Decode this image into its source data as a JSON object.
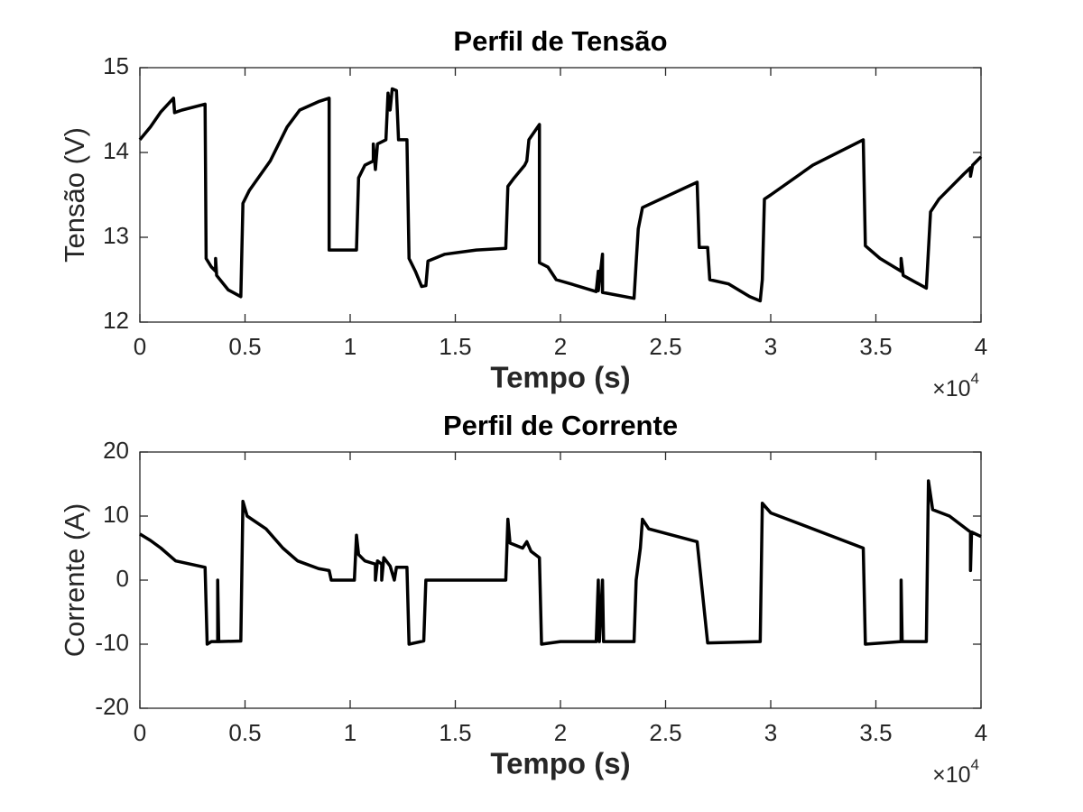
{
  "chart_data": [
    {
      "type": "line",
      "title": "Perfil de Tensão",
      "xlabel": "Tempo (s)",
      "ylabel": "Tensão (V)",
      "x_multiplier": "×10",
      "x_exponent": "4",
      "color": "#000000",
      "xlim": [
        0,
        4
      ],
      "xticks": [
        0,
        0.5,
        1,
        1.5,
        2,
        2.5,
        3,
        3.5,
        4
      ],
      "ylim": [
        12,
        15
      ],
      "yticks": [
        12,
        13,
        14,
        15
      ],
      "grid": false,
      "x": [
        0,
        0.05,
        0.1,
        0.16,
        0.165,
        0.2,
        0.31,
        0.315,
        0.34,
        0.36,
        0.36,
        0.365,
        0.42,
        0.48,
        0.49,
        0.52,
        0.62,
        0.7,
        0.76,
        0.85,
        0.9,
        0.9,
        1.03,
        1.04,
        1.07,
        1.11,
        1.11,
        1.12,
        1.13,
        1.17,
        1.18,
        1.19,
        1.2,
        1.22,
        1.23,
        1.27,
        1.28,
        1.31,
        1.34,
        1.36,
        1.37,
        1.45,
        1.6,
        1.74,
        1.75,
        1.78,
        1.83,
        1.84,
        1.85,
        1.9,
        1.9,
        1.94,
        1.98,
        2.05,
        2.17,
        2.18,
        2.18,
        2.2,
        2.2,
        2.35,
        2.36,
        2.37,
        2.39,
        2.65,
        2.66,
        2.7,
        2.71,
        2.8,
        2.9,
        2.95,
        2.96,
        2.97,
        3.0,
        3.2,
        3.44,
        3.45,
        3.52,
        3.62,
        3.62,
        3.63,
        3.74,
        3.76,
        3.8,
        3.92,
        3.95,
        3.95,
        3.96,
        4.0
      ],
      "values": [
        14.15,
        14.3,
        14.48,
        14.64,
        14.47,
        14.5,
        14.57,
        12.75,
        12.65,
        12.6,
        12.75,
        12.55,
        12.38,
        12.3,
        13.4,
        13.55,
        13.9,
        14.3,
        14.5,
        14.6,
        14.64,
        12.85,
        12.85,
        13.7,
        13.85,
        13.9,
        14.1,
        13.8,
        14.1,
        14.15,
        14.7,
        14.5,
        14.75,
        14.73,
        14.15,
        14.15,
        12.75,
        12.6,
        12.42,
        12.43,
        12.72,
        12.8,
        12.85,
        12.87,
        13.6,
        13.7,
        13.85,
        13.9,
        14.15,
        14.33,
        12.7,
        12.65,
        12.5,
        12.45,
        12.36,
        12.6,
        12.37,
        12.8,
        12.35,
        12.28,
        12.7,
        13.1,
        13.35,
        13.65,
        12.88,
        12.88,
        12.5,
        12.45,
        12.3,
        12.25,
        12.5,
        13.45,
        13.5,
        13.85,
        14.15,
        12.9,
        12.75,
        12.6,
        12.75,
        12.55,
        12.4,
        13.3,
        13.45,
        13.75,
        13.82,
        13.72,
        13.85,
        13.95
      ]
    },
    {
      "type": "line",
      "title": "Perfil de Corrente",
      "xlabel": "Tempo (s)",
      "ylabel": "Corrente (A)",
      "x_multiplier": "×10",
      "x_exponent": "4",
      "color": "#000000",
      "xlim": [
        0,
        4
      ],
      "xticks": [
        0,
        0.5,
        1,
        1.5,
        2,
        2.5,
        3,
        3.5,
        4
      ],
      "ylim": [
        -20,
        20
      ],
      "yticks": [
        -20,
        -10,
        0,
        10,
        20
      ],
      "grid": false,
      "x": [
        0,
        0.05,
        0.1,
        0.17,
        0.31,
        0.32,
        0.34,
        0.37,
        0.37,
        0.375,
        0.48,
        0.49,
        0.51,
        0.6,
        0.68,
        0.75,
        0.85,
        0.9,
        0.91,
        1.02,
        1.03,
        1.04,
        1.07,
        1.12,
        1.12,
        1.13,
        1.15,
        1.15,
        1.16,
        1.19,
        1.21,
        1.22,
        1.27,
        1.28,
        1.35,
        1.36,
        1.74,
        1.75,
        1.76,
        1.82,
        1.84,
        1.86,
        1.9,
        1.91,
        2.0,
        2.17,
        2.18,
        2.185,
        2.2,
        2.205,
        2.35,
        2.36,
        2.38,
        2.39,
        2.42,
        2.65,
        2.7,
        2.95,
        2.96,
        3.0,
        3.44,
        3.45,
        3.62,
        3.62,
        3.625,
        3.74,
        3.75,
        3.77,
        3.85,
        3.95,
        3.95,
        3.955,
        4.0
      ],
      "values": [
        7.2,
        6.2,
        5,
        3,
        2,
        -10,
        -9.6,
        -9.6,
        0,
        -9.6,
        -9.5,
        12.3,
        10,
        8,
        5,
        3,
        1.8,
        1.5,
        0,
        0,
        7,
        4,
        3,
        2.5,
        0,
        3,
        2.5,
        0,
        3.5,
        2.2,
        0,
        2,
        2,
        -10,
        -9.5,
        0,
        0,
        9.5,
        5.8,
        5,
        6,
        4.5,
        3.5,
        -10,
        -9.6,
        -9.6,
        0,
        -9.6,
        0,
        -9.6,
        -9.6,
        0,
        5,
        9.5,
        8,
        6,
        -9.8,
        -9.6,
        12,
        10.5,
        5,
        -10,
        -9.6,
        0,
        -9.6,
        -9.6,
        15.5,
        11,
        10,
        7.5,
        1.5,
        7.5,
        6.8
      ]
    }
  ]
}
